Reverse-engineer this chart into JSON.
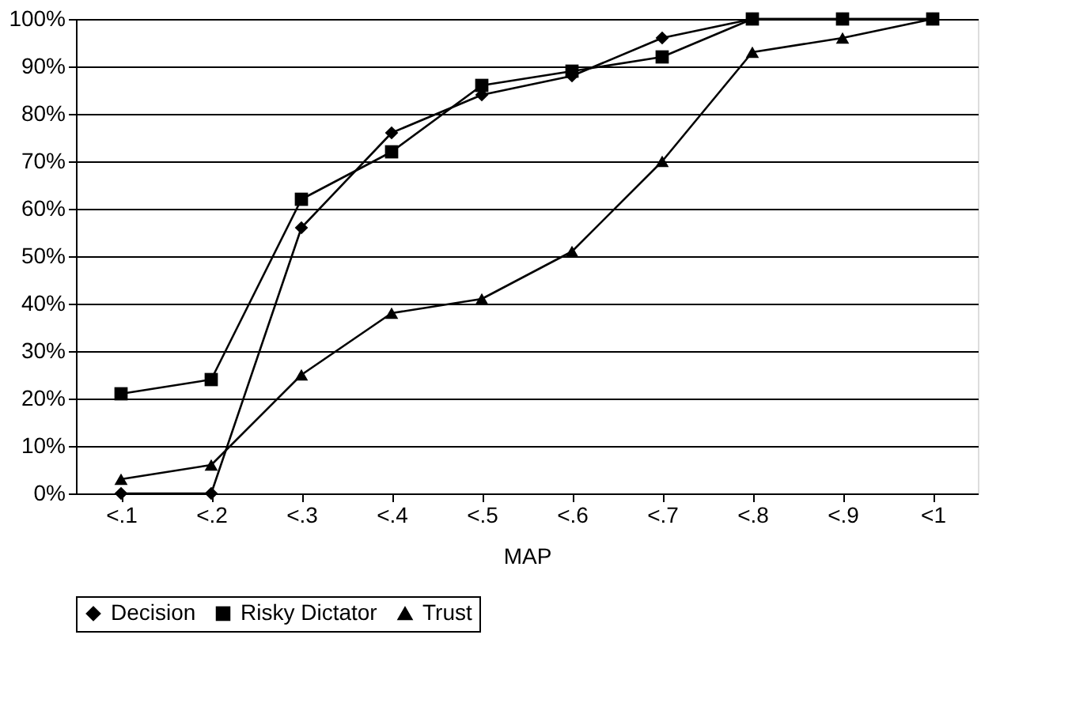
{
  "chart_data": {
    "type": "line",
    "xlabel": "MAP",
    "categories": [
      "<.1",
      "<.2",
      "<.3",
      "<.4",
      "<.5",
      "<.6",
      "<.7",
      "<.8",
      "<.9",
      "<1"
    ],
    "series": [
      {
        "name": "Decision",
        "color": "#000000",
        "marker": "diamond",
        "values": [
          0,
          0,
          56,
          76,
          84,
          88,
          96,
          100,
          100,
          100
        ]
      },
      {
        "name": "Risky Dictator",
        "color": "#000000",
        "marker": "square",
        "values": [
          21,
          24,
          62,
          72,
          86,
          89,
          92,
          100,
          100,
          100
        ]
      },
      {
        "name": "Trust",
        "color": "#000000",
        "marker": "triangle",
        "values": [
          3,
          6,
          25,
          38,
          41,
          51,
          70,
          93,
          96,
          100
        ]
      }
    ],
    "ylim": [
      0,
      100
    ],
    "yticks": [
      {
        "value": 0,
        "label": "0%"
      },
      {
        "value": 10,
        "label": "10%"
      },
      {
        "value": 20,
        "label": "20%"
      },
      {
        "value": 30,
        "label": "30%"
      },
      {
        "value": 40,
        "label": "40%"
      },
      {
        "value": 50,
        "label": "50%"
      },
      {
        "value": 60,
        "label": "60%"
      },
      {
        "value": 70,
        "label": "70%"
      },
      {
        "value": 80,
        "label": "80%"
      },
      {
        "value": 90,
        "label": "90%"
      },
      {
        "value": 100,
        "label": "100%"
      }
    ],
    "grid": "y",
    "legend": "bottom",
    "line_style": "solid"
  }
}
